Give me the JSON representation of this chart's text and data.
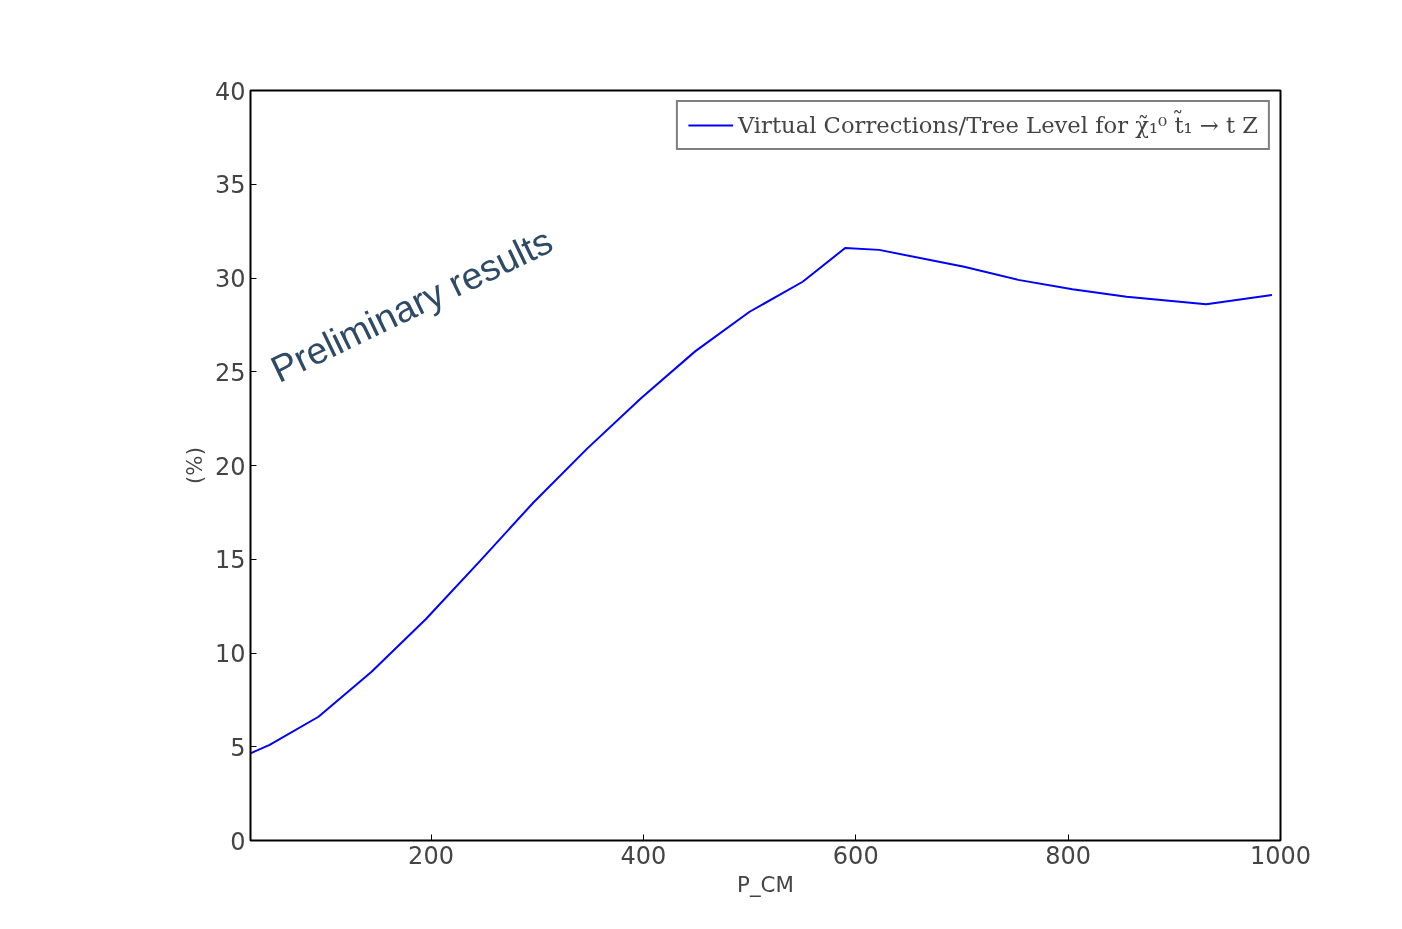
{
  "chart_data": {
    "type": "line",
    "xlabel": "P_CM",
    "ylabel": "(%)",
    "annotations": [
      "Preliminary results"
    ],
    "xlim": [
      30,
      1000
    ],
    "ylim": [
      0,
      40
    ],
    "xticks": [
      200,
      400,
      600,
      800,
      1000
    ],
    "yticks": [
      0,
      5,
      10,
      15,
      20,
      25,
      30,
      35,
      40
    ],
    "x": [
      30,
      48,
      94,
      144,
      195,
      246,
      296,
      347,
      398,
      449,
      500,
      550,
      590,
      622,
      702,
      753,
      804,
      855,
      930,
      992
    ],
    "series": [
      {
        "name": "Virtual Corrections/Tree Level for χ̃₁⁰ t̃₁ → t Z",
        "color": "#0000ff",
        "values": [
          4.65,
          5.1,
          6.6,
          9.0,
          11.8,
          14.9,
          18.0,
          20.9,
          23.6,
          26.1,
          28.2,
          29.8,
          31.6,
          31.5,
          30.6,
          29.9,
          29.4,
          29.0,
          28.6,
          29.1
        ]
      }
    ],
    "grid": false,
    "legend": "top",
    "line_style": "solid",
    "marker": "none"
  }
}
